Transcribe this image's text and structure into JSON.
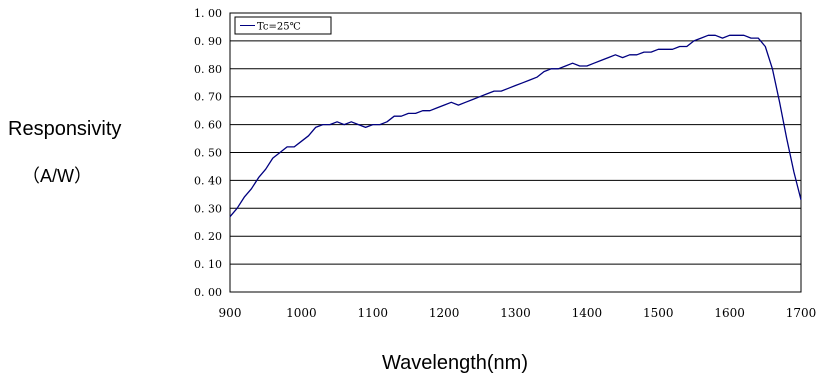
{
  "chart_data": {
    "type": "line",
    "title": "",
    "ylabel_line1": "Responsivity",
    "ylabel_line2": "（A/W）",
    "xlabel": "Wavelength(nm)",
    "xlim": [
      900,
      1700
    ],
    "ylim": [
      0.0,
      1.0
    ],
    "xticks": [
      "900",
      "1000",
      "1100",
      "1200",
      "1300",
      "1400",
      "1500",
      "1600",
      "1700"
    ],
    "yticks": [
      "0. 00",
      "0. 10",
      "0. 20",
      "0. 30",
      "0. 40",
      "0. 50",
      "0. 60",
      "0. 70",
      "0. 80",
      "0. 90",
      "1. 00"
    ],
    "grid": "horizontal",
    "legend_position": "top-left",
    "series": [
      {
        "name": "Tc=25℃",
        "color": "#000080",
        "x": [
          900,
          910,
          920,
          930,
          940,
          950,
          960,
          970,
          980,
          990,
          1000,
          1010,
          1020,
          1030,
          1040,
          1050,
          1060,
          1070,
          1080,
          1090,
          1100,
          1110,
          1120,
          1130,
          1140,
          1150,
          1160,
          1170,
          1180,
          1190,
          1200,
          1210,
          1220,
          1230,
          1240,
          1250,
          1260,
          1270,
          1280,
          1290,
          1300,
          1310,
          1320,
          1330,
          1340,
          1350,
          1360,
          1370,
          1380,
          1390,
          1400,
          1410,
          1420,
          1430,
          1440,
          1450,
          1460,
          1470,
          1480,
          1490,
          1500,
          1510,
          1520,
          1530,
          1540,
          1550,
          1560,
          1570,
          1580,
          1590,
          1600,
          1610,
          1620,
          1630,
          1640,
          1650,
          1660,
          1670,
          1680,
          1690,
          1700
        ],
        "values": [
          0.27,
          0.3,
          0.34,
          0.37,
          0.41,
          0.44,
          0.48,
          0.5,
          0.52,
          0.52,
          0.54,
          0.56,
          0.59,
          0.6,
          0.6,
          0.61,
          0.6,
          0.61,
          0.6,
          0.59,
          0.6,
          0.6,
          0.61,
          0.63,
          0.63,
          0.64,
          0.64,
          0.65,
          0.65,
          0.66,
          0.67,
          0.68,
          0.67,
          0.68,
          0.69,
          0.7,
          0.71,
          0.72,
          0.72,
          0.73,
          0.74,
          0.75,
          0.76,
          0.77,
          0.79,
          0.8,
          0.8,
          0.81,
          0.82,
          0.81,
          0.81,
          0.82,
          0.83,
          0.84,
          0.85,
          0.84,
          0.85,
          0.85,
          0.86,
          0.86,
          0.87,
          0.87,
          0.87,
          0.88,
          0.88,
          0.9,
          0.91,
          0.92,
          0.92,
          0.91,
          0.92,
          0.92,
          0.92,
          0.91,
          0.91,
          0.88,
          0.8,
          0.68,
          0.55,
          0.43,
          0.33
        ]
      }
    ]
  }
}
